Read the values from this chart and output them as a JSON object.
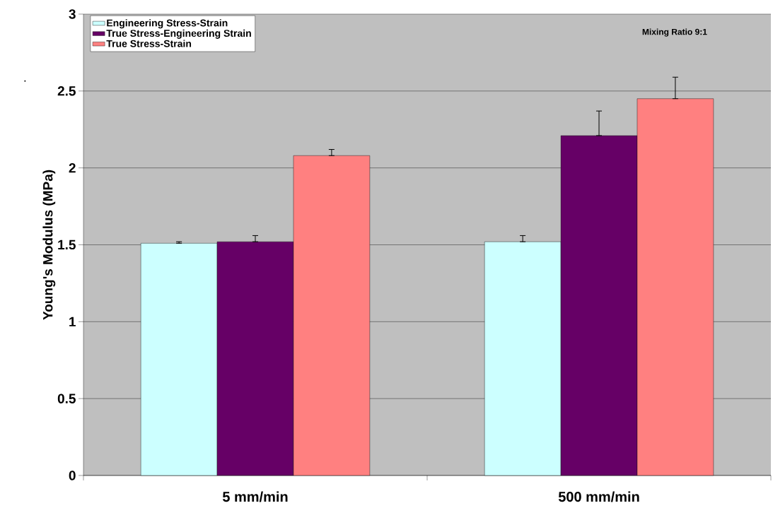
{
  "chart_data": {
    "type": "bar",
    "ylabel": "Young's Modulus (MPa)",
    "categories": [
      "5 mm/min",
      "500 mm/min"
    ],
    "series": [
      {
        "name": "Engineering Stress-Strain",
        "color": "#ccffff",
        "values": [
          1.51,
          1.52
        ],
        "errors": [
          [
            1.51,
            1.52
          ],
          [
            1.52,
            1.56
          ]
        ]
      },
      {
        "name": "True Stress-Engineering Strain",
        "color": "#660066",
        "values": [
          1.52,
          2.21
        ],
        "errors": [
          [
            1.52,
            1.56
          ],
          [
            2.21,
            2.37
          ]
        ]
      },
      {
        "name": "True Stress-Strain",
        "color": "#ff8080",
        "values": [
          2.08,
          2.45
        ],
        "errors": [
          [
            2.08,
            2.12
          ],
          [
            2.45,
            2.59
          ]
        ]
      }
    ],
    "ylim": [
      0,
      3
    ],
    "yticks": [
      0,
      0.5,
      1,
      1.5,
      2,
      2.5,
      3
    ],
    "grid": "y",
    "legend": "top left",
    "annotations": [
      "Mixing Ratio 9:1",
      "."
    ]
  }
}
